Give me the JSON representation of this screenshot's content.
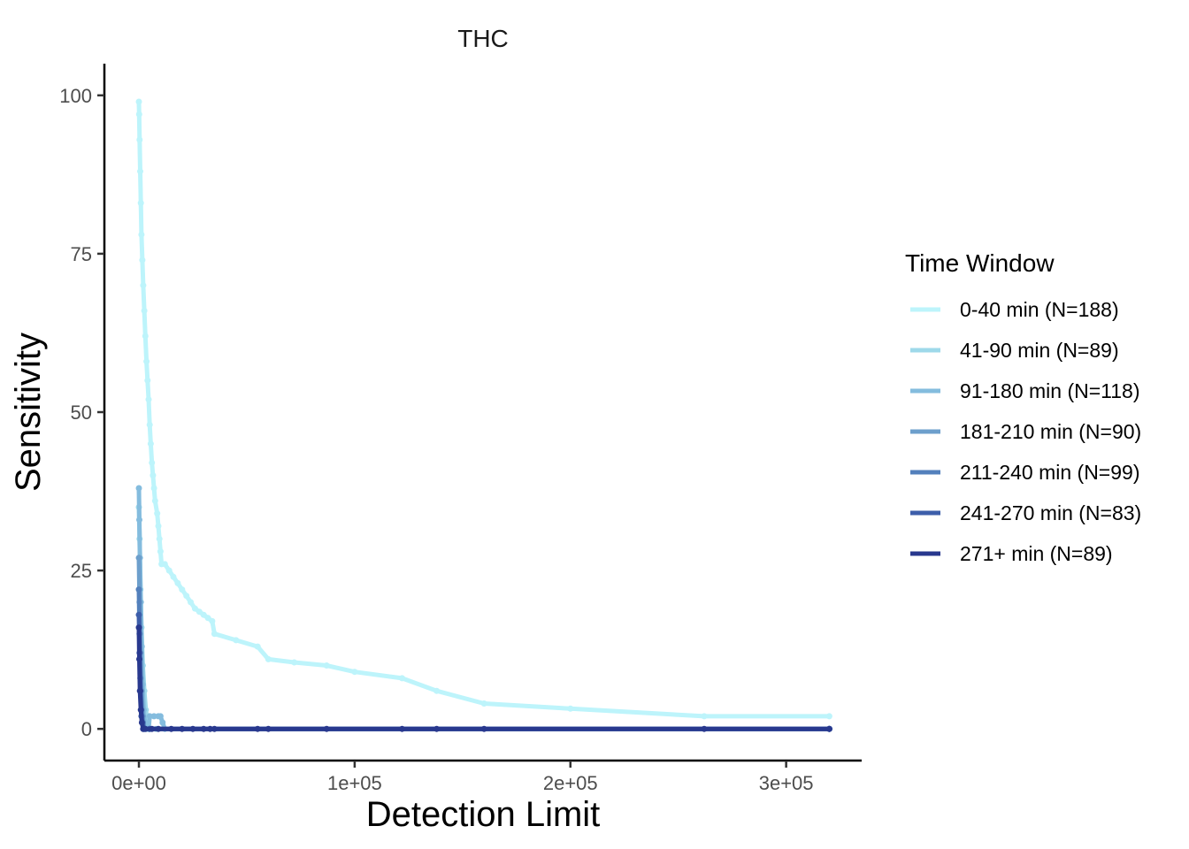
{
  "chart_data": {
    "type": "line",
    "title": "THC",
    "xlabel": "Detection Limit",
    "ylabel": "Sensitivity",
    "xlim": [
      -16000,
      335000
    ],
    "ylim": [
      -5,
      105
    ],
    "x_ticks": [
      0,
      100000,
      200000,
      300000
    ],
    "x_tick_labels": [
      "0e+00",
      "1e+05",
      "2e+05",
      "3e+05"
    ],
    "y_ticks": [
      0,
      25,
      50,
      75,
      100
    ],
    "y_tick_labels": [
      "0",
      "25",
      "50",
      "75",
      "100"
    ],
    "grid": false,
    "legend": {
      "title": "Time Window",
      "placement": "right"
    },
    "series": [
      {
        "name": "0-40 min (N=188)",
        "color": "#bdf4fb",
        "points": [
          [
            0,
            99
          ],
          [
            100,
            97
          ],
          [
            300,
            93
          ],
          [
            600,
            88
          ],
          [
            900,
            83
          ],
          [
            1200,
            78
          ],
          [
            1600,
            74
          ],
          [
            2000,
            70
          ],
          [
            2500,
            66
          ],
          [
            3000,
            62
          ],
          [
            3500,
            58
          ],
          [
            4000,
            55
          ],
          [
            4500,
            52
          ],
          [
            5000,
            48
          ],
          [
            5500,
            45
          ],
          [
            6000,
            42
          ],
          [
            6500,
            40
          ],
          [
            7000,
            38
          ],
          [
            7500,
            36
          ],
          [
            8500,
            34
          ],
          [
            9000,
            32
          ],
          [
            9500,
            30
          ],
          [
            10000,
            28
          ],
          [
            10500,
            26
          ],
          [
            12000,
            26
          ],
          [
            14000,
            25
          ],
          [
            16000,
            24
          ],
          [
            18000,
            23
          ],
          [
            20000,
            22
          ],
          [
            22000,
            21
          ],
          [
            24000,
            20
          ],
          [
            26000,
            19
          ],
          [
            28000,
            18.5
          ],
          [
            30000,
            18
          ],
          [
            32000,
            17.5
          ],
          [
            34000,
            17
          ],
          [
            35000,
            15
          ],
          [
            45000,
            14
          ],
          [
            55000,
            13
          ],
          [
            60000,
            11
          ],
          [
            72000,
            10.5
          ],
          [
            87000,
            10
          ],
          [
            100000,
            9
          ],
          [
            122000,
            8
          ],
          [
            138000,
            6
          ],
          [
            160000,
            4
          ],
          [
            200000,
            3.2
          ],
          [
            262000,
            2
          ],
          [
            320000,
            2
          ]
        ]
      },
      {
        "name": "41-90 min (N=89)",
        "color": "#9ed9ea",
        "points": [
          [
            0,
            35
          ],
          [
            300,
            30
          ],
          [
            700,
            22
          ],
          [
            1200,
            16
          ],
          [
            1800,
            10
          ],
          [
            2500,
            6
          ],
          [
            3200,
            3
          ],
          [
            4000,
            1
          ],
          [
            5000,
            0
          ],
          [
            8000,
            0
          ],
          [
            320000,
            0
          ]
        ]
      },
      {
        "name": "91-180 min (N=118)",
        "color": "#84bcde",
        "points": [
          [
            0,
            38
          ],
          [
            200,
            33
          ],
          [
            500,
            27
          ],
          [
            900,
            20
          ],
          [
            1300,
            13
          ],
          [
            1700,
            7
          ],
          [
            2200,
            3
          ],
          [
            2800,
            1
          ],
          [
            3500,
            0
          ],
          [
            4500,
            0
          ],
          [
            5000,
            2
          ],
          [
            7000,
            2
          ],
          [
            9000,
            2
          ],
          [
            10000,
            2
          ],
          [
            11000,
            1
          ],
          [
            12000,
            0
          ],
          [
            320000,
            0
          ]
        ]
      },
      {
        "name": "181-210 min (N=90)",
        "color": "#6d9fcc",
        "points": [
          [
            0,
            27
          ],
          [
            300,
            20
          ],
          [
            700,
            12
          ],
          [
            1200,
            6
          ],
          [
            1800,
            2
          ],
          [
            2500,
            0
          ],
          [
            5000,
            0
          ],
          [
            320000,
            0
          ]
        ]
      },
      {
        "name": "211-240 min (N=99)",
        "color": "#5380bc",
        "points": [
          [
            0,
            22
          ],
          [
            300,
            15
          ],
          [
            700,
            8
          ],
          [
            1200,
            3
          ],
          [
            1800,
            1
          ],
          [
            2500,
            0
          ],
          [
            5000,
            0
          ],
          [
            320000,
            0
          ]
        ]
      },
      {
        "name": "241-270 min (N=83)",
        "color": "#3d5eaa",
        "points": [
          [
            0,
            18
          ],
          [
            300,
            12
          ],
          [
            700,
            6
          ],
          [
            1200,
            2
          ],
          [
            2000,
            0
          ],
          [
            5000,
            0
          ],
          [
            320000,
            0
          ]
        ]
      },
      {
        "name": "271+ min (N=89)",
        "color": "#28388e",
        "points": [
          [
            0,
            16
          ],
          [
            200,
            11
          ],
          [
            500,
            6
          ],
          [
            900,
            3
          ],
          [
            1400,
            1
          ],
          [
            2000,
            0
          ],
          [
            3000,
            0
          ],
          [
            6000,
            0
          ],
          [
            9000,
            0
          ],
          [
            15000,
            0
          ],
          [
            20000,
            0
          ],
          [
            25000,
            0
          ],
          [
            30000,
            0
          ],
          [
            33000,
            0
          ],
          [
            35000,
            0
          ],
          [
            55000,
            0
          ],
          [
            60000,
            0
          ],
          [
            87000,
            0
          ],
          [
            122000,
            0
          ],
          [
            138000,
            0
          ],
          [
            160000,
            0
          ],
          [
            262000,
            0
          ],
          [
            320000,
            0
          ]
        ]
      }
    ]
  }
}
